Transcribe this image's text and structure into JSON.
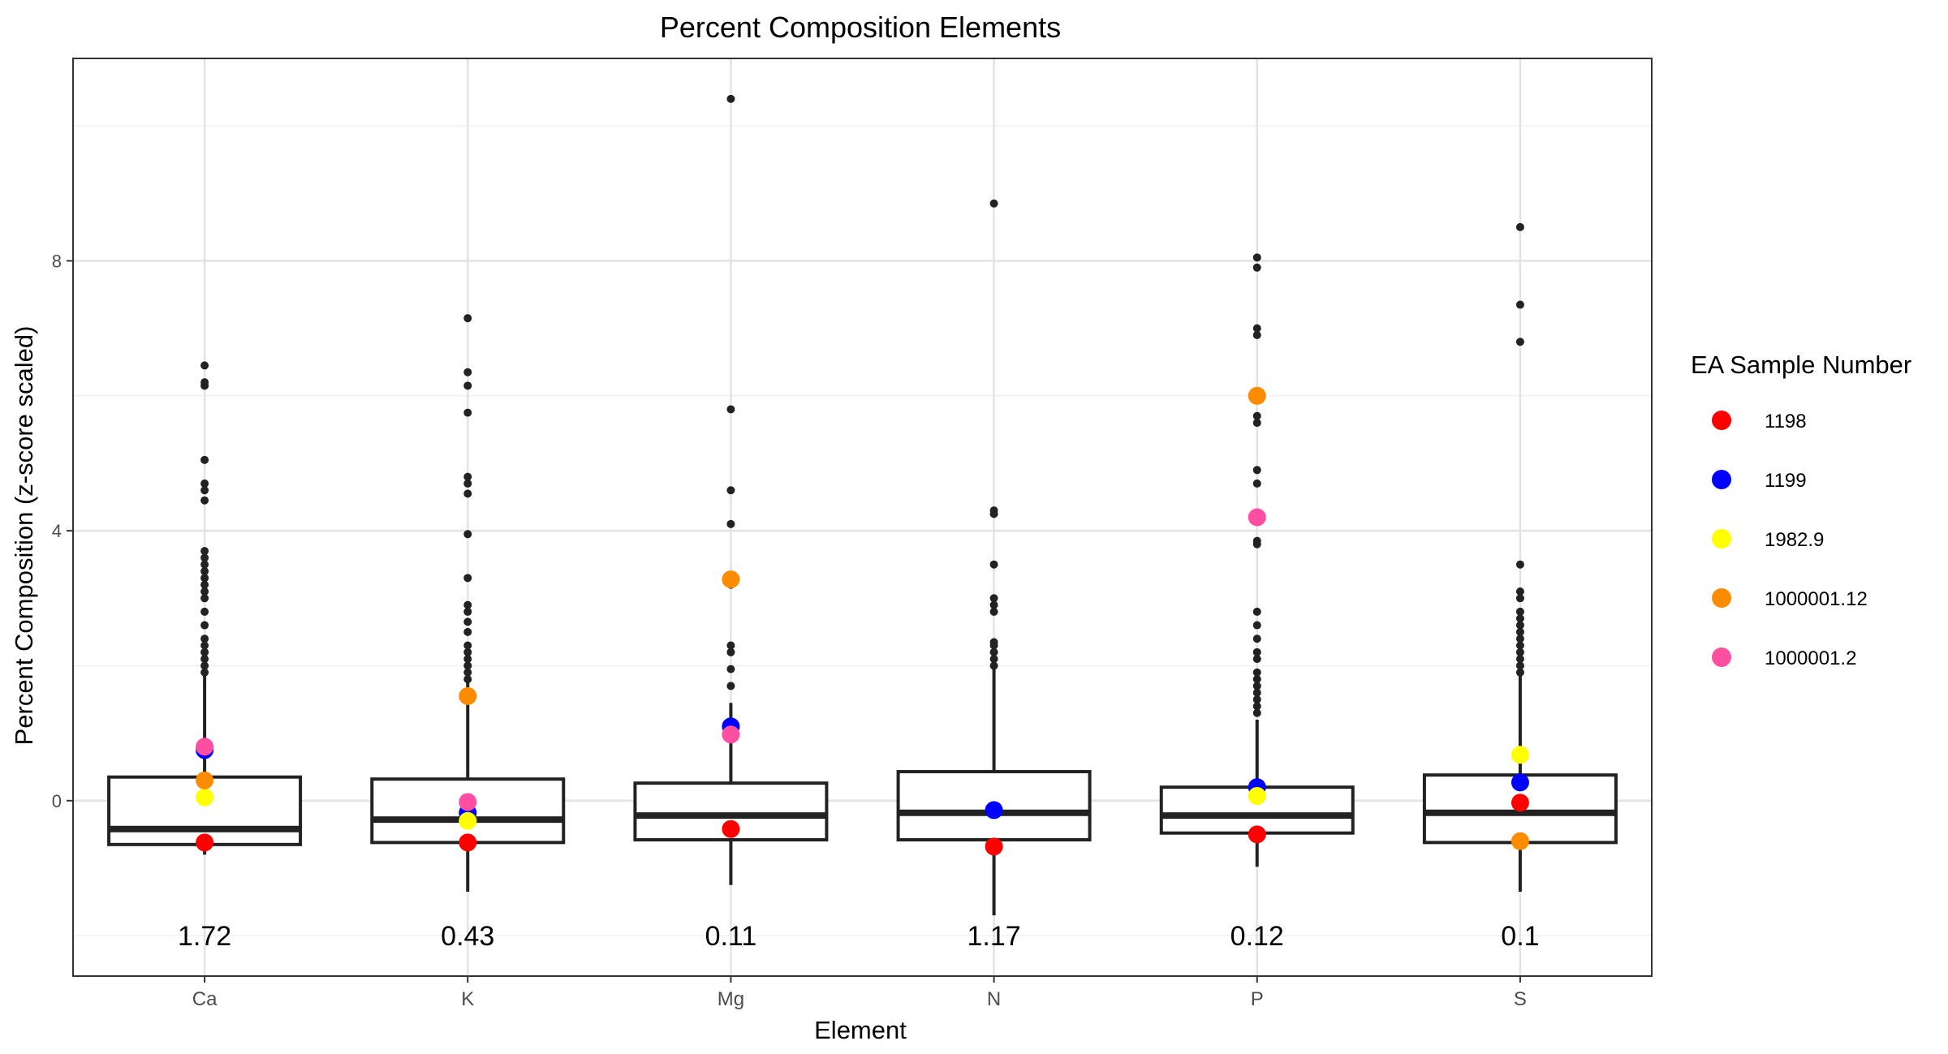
{
  "chart_data": {
    "type": "box",
    "title": "Percent Composition Elements",
    "xlabel": "Element",
    "ylabel": "Percent Composition (z-score scaled)",
    "ylim": [
      -2.6,
      11.0
    ],
    "yticks": [
      0,
      4,
      8
    ],
    "grid": true,
    "legend_position": "right",
    "legend_title": "EA Sample Number",
    "categories": [
      "Ca",
      "K",
      "Mg",
      "N",
      "P",
      "S"
    ],
    "boxes": [
      {
        "category": "Ca",
        "whisker_low": -0.8,
        "q1": -0.65,
        "median": -0.42,
        "q3": 0.35,
        "whisker_high": 1.85,
        "outliers": [
          1.9,
          2.0,
          2.1,
          2.2,
          2.3,
          2.4,
          2.6,
          2.8,
          3.0,
          3.1,
          3.2,
          3.3,
          3.4,
          3.5,
          3.6,
          3.7,
          4.45,
          4.6,
          4.7,
          5.05,
          6.15,
          6.2,
          6.45
        ]
      },
      {
        "category": "K",
        "whisker_low": -1.35,
        "q1": -0.62,
        "median": -0.28,
        "q3": 0.32,
        "whisker_high": 1.75,
        "outliers": [
          1.8,
          1.9,
          2.0,
          2.1,
          2.2,
          2.3,
          2.5,
          2.65,
          2.8,
          2.9,
          3.3,
          3.95,
          4.55,
          4.7,
          4.8,
          5.75,
          6.15,
          6.35,
          7.15
        ]
      },
      {
        "category": "Mg",
        "whisker_low": -1.25,
        "q1": -0.58,
        "median": -0.22,
        "q3": 0.26,
        "whisker_high": 1.45,
        "outliers": [
          1.7,
          1.95,
          2.2,
          2.3,
          3.2,
          4.1,
          4.6,
          5.8,
          10.4
        ]
      },
      {
        "category": "N",
        "whisker_low": -1.7,
        "q1": -0.58,
        "median": -0.18,
        "q3": 0.43,
        "whisker_high": 1.95,
        "outliers": [
          2.0,
          2.1,
          2.2,
          2.3,
          2.35,
          2.8,
          2.9,
          3.0,
          3.5,
          4.25,
          4.3,
          8.85
        ]
      },
      {
        "category": "P",
        "whisker_low": -0.98,
        "q1": -0.48,
        "median": -0.22,
        "q3": 0.2,
        "whisker_high": 1.2,
        "outliers": [
          1.3,
          1.4,
          1.5,
          1.6,
          1.7,
          1.8,
          1.9,
          2.1,
          2.2,
          2.4,
          2.6,
          2.8,
          3.8,
          3.85,
          4.7,
          4.9,
          5.6,
          5.7,
          6.9,
          7.0,
          7.9,
          8.05
        ]
      },
      {
        "category": "S",
        "whisker_low": -1.35,
        "q1": -0.62,
        "median": -0.18,
        "q3": 0.38,
        "whisker_high": 1.85,
        "outliers": [
          1.9,
          2.0,
          2.1,
          2.2,
          2.3,
          2.4,
          2.5,
          2.6,
          2.7,
          2.8,
          3.0,
          3.1,
          3.5,
          6.8,
          7.35,
          8.5
        ]
      }
    ],
    "annotations": [
      {
        "category": "Ca",
        "text": "1.72"
      },
      {
        "category": "K",
        "text": "0.43"
      },
      {
        "category": "Mg",
        "text": "0.11"
      },
      {
        "category": "N",
        "text": "1.17"
      },
      {
        "category": "P",
        "text": "0.12"
      },
      {
        "category": "S",
        "text": "0.1"
      }
    ],
    "annotation_y": -2.0,
    "series": [
      {
        "name": "1198",
        "color": "#ff0000",
        "values": [
          -0.62,
          -0.62,
          -0.42,
          -0.68,
          -0.5,
          -0.03
        ]
      },
      {
        "name": "1199",
        "color": "#0000ff",
        "values": [
          0.75,
          -0.18,
          1.1,
          -0.14,
          0.2,
          0.27
        ]
      },
      {
        "name": "1982.9",
        "color": "#ffff00",
        "values": [
          0.05,
          -0.3,
          null,
          null,
          0.07,
          0.68
        ]
      },
      {
        "name": "1000001.12",
        "color": "#ff8c00",
        "values": [
          0.3,
          1.55,
          3.28,
          null,
          6.0,
          -0.6
        ]
      },
      {
        "name": "1000001.2",
        "color": "#ff4fa3",
        "values": [
          0.8,
          -0.02,
          0.98,
          null,
          4.2,
          null
        ]
      }
    ]
  }
}
